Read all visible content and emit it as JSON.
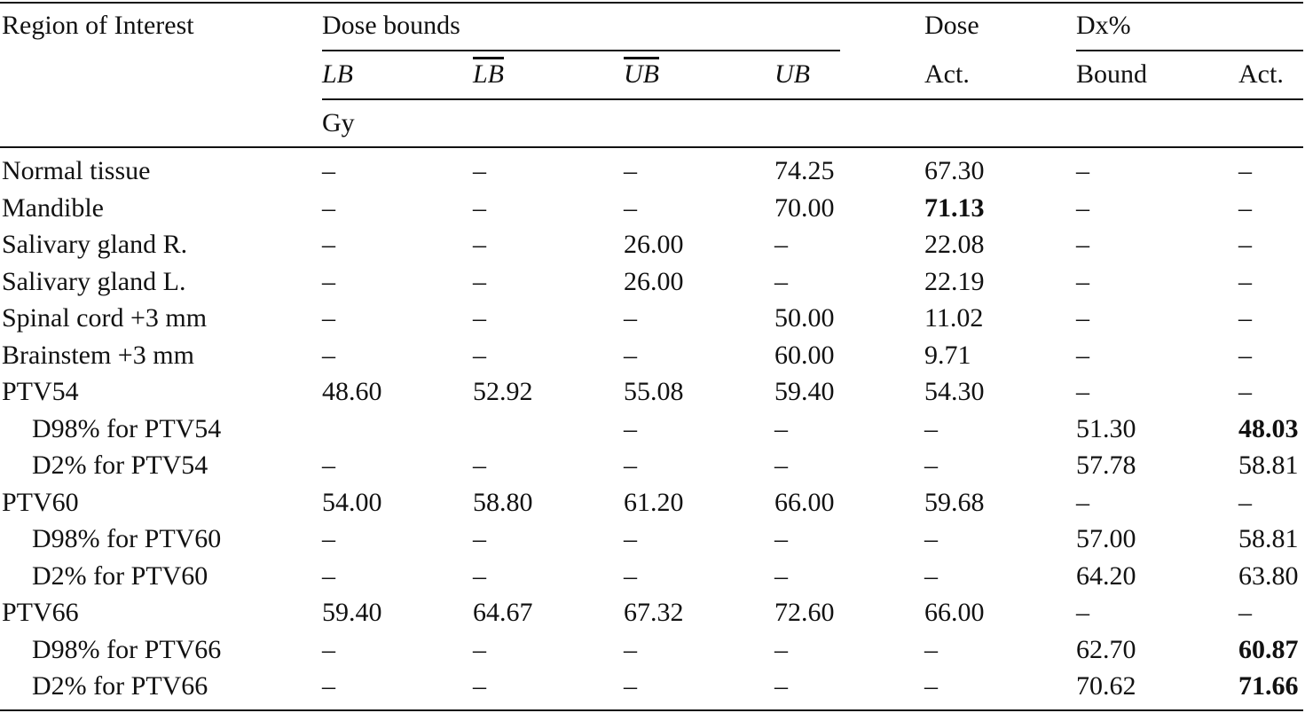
{
  "header": {
    "region_of_interest": "Region of Interest",
    "dose_bounds": "Dose bounds",
    "dose": "Dose",
    "dx_percent": "Dx%",
    "lb": "LB",
    "lb_bar": "LB",
    "ub_bar": "UB",
    "ub": "UB",
    "dose_act": "Act.",
    "dx_bound": "Bound",
    "dx_act": "Act.",
    "unit": "Gy"
  },
  "rows": [
    {
      "label": "Normal tissue",
      "indent": false,
      "lb": "–",
      "lb_bar": "–",
      "ub_bar": "–",
      "ub": "74.25",
      "dose_act": "67.30",
      "dx_bound": "–",
      "dx_act": "–"
    },
    {
      "label": "Mandible",
      "indent": false,
      "lb": "–",
      "lb_bar": "–",
      "ub_bar": "–",
      "ub": "70.00",
      "dose_act": "71.13",
      "dx_bound": "–",
      "dx_act": "–"
    },
    {
      "label": "Salivary gland R.",
      "indent": false,
      "lb": "–",
      "lb_bar": "–",
      "ub_bar": "26.00",
      "ub": "–",
      "dose_act": "22.08",
      "dx_bound": "–",
      "dx_act": "–"
    },
    {
      "label": "Salivary gland L.",
      "indent": false,
      "lb": "–",
      "lb_bar": "–",
      "ub_bar": "26.00",
      "ub": "–",
      "dose_act": "22.19",
      "dx_bound": "–",
      "dx_act": "–"
    },
    {
      "label": "Spinal cord +3 mm",
      "indent": false,
      "lb": "–",
      "lb_bar": "–",
      "ub_bar": "–",
      "ub": "50.00",
      "dose_act": "11.02",
      "dx_bound": "–",
      "dx_act": "–"
    },
    {
      "label": "Brainstem +3 mm",
      "indent": false,
      "lb": "–",
      "lb_bar": "–",
      "ub_bar": "–",
      "ub": "60.00",
      "dose_act": "9.71",
      "dx_bound": "–",
      "dx_act": "–"
    },
    {
      "label": "PTV54",
      "indent": false,
      "lb": "48.60",
      "lb_bar": "52.92",
      "ub_bar": "55.08",
      "ub": "59.40",
      "dose_act": "54.30",
      "dx_bound": "–",
      "dx_act": "–"
    },
    {
      "label": "D98% for PTV54",
      "indent": true,
      "lb": "",
      "lb_bar": "",
      "ub_bar": "–",
      "ub": "–",
      "dose_act": "–",
      "dx_bound": "51.30",
      "dx_act": "48.03"
    },
    {
      "label": "D2% for PTV54",
      "indent": true,
      "lb": "–",
      "lb_bar": "–",
      "ub_bar": "–",
      "ub": "–",
      "dose_act": "–",
      "dx_bound": "57.78",
      "dx_act": "58.81"
    },
    {
      "label": "PTV60",
      "indent": false,
      "lb": "54.00",
      "lb_bar": "58.80",
      "ub_bar": "61.20",
      "ub": "66.00",
      "dose_act": "59.68",
      "dx_bound": "–",
      "dx_act": "–"
    },
    {
      "label": "D98% for PTV60",
      "indent": true,
      "lb": "–",
      "lb_bar": "–",
      "ub_bar": "–",
      "ub": "–",
      "dose_act": "–",
      "dx_bound": "57.00",
      "dx_act": "58.81"
    },
    {
      "label": "D2% for PTV60",
      "indent": true,
      "lb": "–",
      "lb_bar": "–",
      "ub_bar": "–",
      "ub": "–",
      "dose_act": "–",
      "dx_bound": "64.20",
      "dx_act": "63.80"
    },
    {
      "label": "PTV66",
      "indent": false,
      "lb": "59.40",
      "lb_bar": "64.67",
      "ub_bar": "67.32",
      "ub": "72.60",
      "dose_act": "66.00",
      "dx_bound": "–",
      "dx_act": "–"
    },
    {
      "label": "D98% for PTV66",
      "indent": true,
      "lb": "–",
      "lb_bar": "–",
      "ub_bar": "–",
      "ub": "–",
      "dose_act": "–",
      "dx_bound": "62.70",
      "dx_act": "60.87"
    },
    {
      "label": "D2% for PTV66",
      "indent": true,
      "lb": "–",
      "lb_bar": "–",
      "ub_bar": "–",
      "ub": "–",
      "dose_act": "–",
      "dx_bound": "70.62",
      "dx_act": "71.66"
    }
  ],
  "bold_cells": [
    {
      "row": 1,
      "column": "dose_act"
    },
    {
      "row": 7,
      "column": "dx_act"
    },
    {
      "row": 13,
      "column": "dx_act"
    },
    {
      "row": 14,
      "column": "dx_act"
    }
  ]
}
